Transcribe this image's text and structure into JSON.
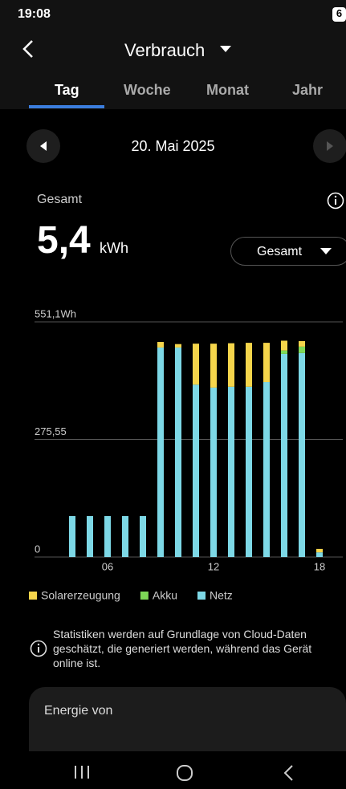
{
  "status": {
    "time": "19:08",
    "battery": "6"
  },
  "header": {
    "title": "Verbrauch",
    "tabs": [
      "Tag",
      "Woche",
      "Monat",
      "Jahr"
    ]
  },
  "date": "20. Mai 2025",
  "summary": {
    "label": "Gesamt",
    "value": "5,4",
    "unit": "kWh",
    "filter": "Gesamt"
  },
  "chart_data": {
    "type": "stacked-bar",
    "categories": [
      null,
      null,
      null,
      null,
      "06",
      null,
      null,
      null,
      null,
      null,
      "12",
      null,
      null,
      null,
      null,
      null,
      "18"
    ],
    "series": [
      {
        "name": "Solarerzeugung",
        "color": "#f5d54b",
        "values": [
          0,
          0,
          0,
          0,
          0,
          0,
          0,
          13,
          8,
          96,
          103,
          102,
          103,
          92,
          23,
          13,
          8
        ]
      },
      {
        "name": "Akku",
        "color": "#7ed957",
        "values": [
          0,
          0,
          0,
          0,
          0,
          0,
          0,
          0,
          0,
          0,
          0,
          0,
          0,
          0,
          8,
          15,
          0
        ]
      },
      {
        "name": "Netz",
        "color": "#7dd8e6",
        "values": [
          0,
          0,
          96,
          96,
          96,
          96,
          96,
          491,
          491,
          404,
          397,
          399,
          399,
          410,
          476,
          478,
          11
        ]
      }
    ],
    "ylim": [
      0,
      551.1
    ],
    "yticks": [
      0,
      {
        "value": 275.55,
        "label": "275,55"
      },
      {
        "value": 551.1,
        "label": "551,1Wh"
      }
    ],
    "grid": true
  },
  "info": "Statistiken werden auf Grundlage von Cloud-Daten geschätzt, die generiert werden, während das Gerät online ist.",
  "card": {
    "title": "Energie von"
  }
}
